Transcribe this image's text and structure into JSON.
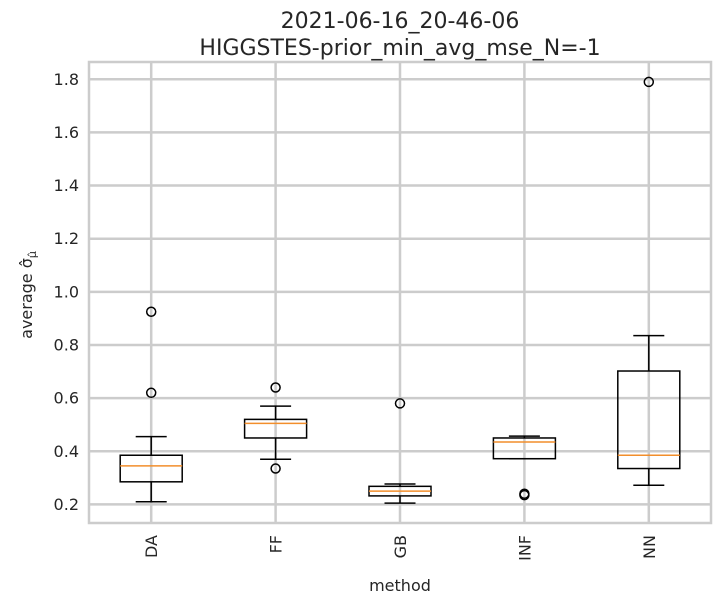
{
  "chart_data": {
    "type": "box",
    "title_line1": "2021-06-16_20-46-06",
    "title_line2": "HIGGSTES-prior_min_avg_mse_N=-1",
    "xlabel": "method",
    "ylabel": "average σ̂",
    "ylabel_subscript": "μ̂",
    "ylim": [
      0.13,
      1.865
    ],
    "yticks": [
      0.2,
      0.4,
      0.6,
      0.8,
      1.0,
      1.2,
      1.4,
      1.6,
      1.8
    ],
    "ytick_labels": [
      "0.2",
      "0.4",
      "0.6",
      "0.8",
      "1.0",
      "1.2",
      "1.4",
      "1.6",
      "1.8"
    ],
    "grid": true,
    "categories": [
      "DA",
      "FF",
      "GB",
      "INF",
      "NN"
    ],
    "boxes": [
      {
        "name": "DA",
        "whislo": 0.21,
        "q1": 0.285,
        "med": 0.345,
        "q3": 0.385,
        "whishi": 0.455,
        "fliers": [
          0.62,
          0.925
        ]
      },
      {
        "name": "FF",
        "whislo": 0.37,
        "q1": 0.45,
        "med": 0.505,
        "q3": 0.52,
        "whishi": 0.57,
        "fliers": [
          0.335,
          0.64
        ]
      },
      {
        "name": "GB",
        "whislo": 0.205,
        "q1": 0.232,
        "med": 0.25,
        "q3": 0.268,
        "whishi": 0.277,
        "fliers": [
          0.58
        ]
      },
      {
        "name": "INF",
        "whislo": 0.372,
        "q1": 0.372,
        "med": 0.435,
        "q3": 0.45,
        "whishi": 0.457,
        "fliers": [
          0.24,
          0.235
        ]
      },
      {
        "name": "NN",
        "whislo": 0.272,
        "q1": 0.335,
        "med": 0.385,
        "q3": 0.702,
        "whishi": 0.835,
        "fliers": [
          1.79
        ]
      }
    ],
    "colors": {
      "box": "#000000",
      "median": "#f28e2b",
      "grid": "#cccccc"
    }
  }
}
